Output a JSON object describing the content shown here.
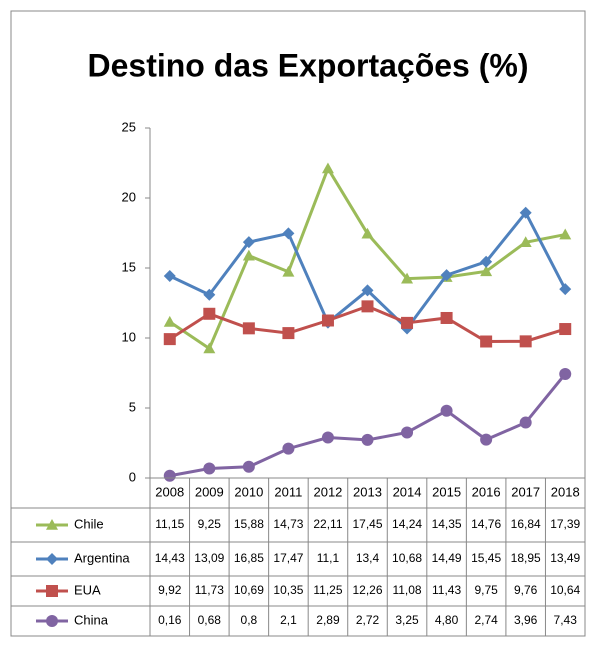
{
  "chart_data": {
    "type": "line",
    "title": "Destino das Exportações (%)",
    "categories": [
      "2008",
      "2009",
      "2010",
      "2011",
      "2012",
      "2013",
      "2014",
      "2015",
      "2016",
      "2017",
      "2018"
    ],
    "series": [
      {
        "name": "Chile",
        "color": "#9bbb59",
        "marker": "triangle",
        "values": [
          11.15,
          9.25,
          15.88,
          14.73,
          22.11,
          17.45,
          14.24,
          14.35,
          14.76,
          16.84,
          17.39
        ],
        "value_labels": [
          "11,15",
          "9,25",
          "15,88",
          "14,73",
          "22,11",
          "17,45",
          "14,24",
          "14,35",
          "14,76",
          "16,84",
          "17,39"
        ]
      },
      {
        "name": "Argentina",
        "color": "#4f81bd",
        "marker": "diamond",
        "values": [
          14.43,
          13.09,
          16.85,
          17.47,
          11.1,
          13.4,
          10.68,
          14.49,
          15.45,
          18.95,
          13.49
        ],
        "value_labels": [
          "14,43",
          "13,09",
          "16,85",
          "17,47",
          "11,1",
          "13,4",
          "10,68",
          "14,49",
          "15,45",
          "18,95",
          "13,49"
        ]
      },
      {
        "name": "EUA",
        "color": "#c0504d",
        "marker": "square",
        "values": [
          9.92,
          11.73,
          10.69,
          10.35,
          11.25,
          12.26,
          11.08,
          11.43,
          9.75,
          9.76,
          10.64
        ],
        "value_labels": [
          "9,92",
          "11,73",
          "10,69",
          "10,35",
          "11,25",
          "12,26",
          "11,08",
          "11,43",
          "9,75",
          "9,76",
          "10,64"
        ]
      },
      {
        "name": "China",
        "color": "#8064a2",
        "marker": "circle",
        "values": [
          0.16,
          0.68,
          0.8,
          2.1,
          2.89,
          2.72,
          3.25,
          4.8,
          2.74,
          3.96,
          7.43
        ],
        "value_labels": [
          "0,16",
          "0,68",
          "0,8",
          "2,1",
          "2,89",
          "2,72",
          "3,25",
          "4,80",
          "2,74",
          "3,96",
          "7,43"
        ]
      }
    ],
    "ylim": [
      0,
      25
    ],
    "yticks": [
      0,
      5,
      10,
      15,
      20,
      25
    ],
    "grid": false
  }
}
